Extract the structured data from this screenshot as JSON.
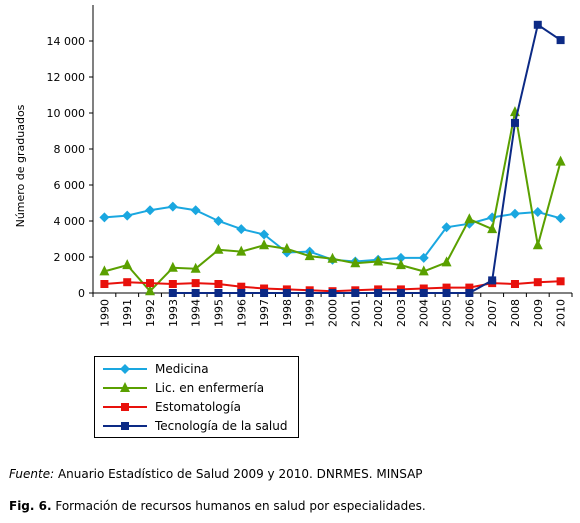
{
  "chart_data": {
    "type": "line",
    "ylabel": "Número de graduados",
    "xlabel": "",
    "ylim": [
      0,
      16000
    ],
    "yticks": [
      0,
      2000,
      4000,
      6000,
      8000,
      10000,
      12000,
      14000
    ],
    "ytick_labels": [
      "0",
      "2 000",
      "4 000",
      "6 000",
      "8 000",
      "10 000",
      "12 000",
      "14 000"
    ],
    "x": [
      1990,
      1991,
      1992,
      1993,
      1994,
      1995,
      1996,
      1997,
      1998,
      1999,
      2000,
      2001,
      2002,
      2003,
      2004,
      2005,
      2006,
      2007,
      2008,
      2009,
      2010
    ],
    "x_labels": [
      "1990",
      "1991",
      "1992",
      "1993",
      "1994",
      "1995",
      "1996",
      "1997",
      "1998",
      "1999",
      "2000",
      "2001",
      "2002",
      "2003",
      "2004",
      "2005",
      "2006",
      "2007",
      "2008",
      "2009",
      "2010"
    ],
    "grid": false,
    "legend_position": "bottom-left",
    "series": [
      {
        "name": "Medicina",
        "color": "#1AA7E0",
        "marker": "diamond",
        "values": [
          4200,
          4300,
          4600,
          4800,
          4600,
          4000,
          3550,
          3250,
          2250,
          2300,
          1850,
          1750,
          1850,
          1950,
          1950,
          3650,
          3850,
          4200,
          4400,
          4500,
          4150
        ]
      },
      {
        "name": "Lic. en enfermería",
        "color": "#5AA000",
        "marker": "triangle",
        "values": [
          1200,
          1550,
          100,
          1400,
          1350,
          2400,
          2300,
          2650,
          2450,
          2050,
          1900,
          1650,
          1750,
          1550,
          1200,
          1700,
          4100,
          3550,
          10050,
          2650,
          7300
        ]
      },
      {
        "name": "Estomatología",
        "color": "#E8110C",
        "marker": "square",
        "values": [
          500,
          600,
          550,
          500,
          550,
          500,
          350,
          250,
          200,
          150,
          100,
          150,
          200,
          200,
          250,
          300,
          300,
          550,
          500,
          600,
          650
        ]
      },
      {
        "name": "Tecnología de la salud",
        "color": "#0C2A85",
        "marker": "square",
        "values": [
          null,
          null,
          null,
          0,
          0,
          0,
          0,
          0,
          0,
          0,
          0,
          0,
          0,
          0,
          0,
          0,
          0,
          700,
          9450,
          14900,
          14050
        ]
      }
    ]
  },
  "source_label": "Fuente:",
  "source_text": " Anuario Estadístico de Salud 2009 y 2010. DNRMES. MINSAP",
  "figure_label": "Fig. 6.",
  "figure_caption": " Formación de recursos humanos en salud por especialidades."
}
